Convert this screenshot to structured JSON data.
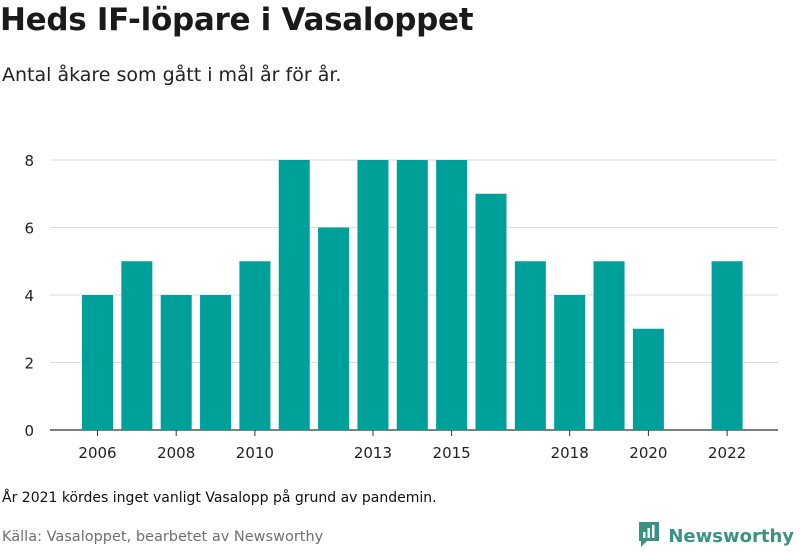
{
  "header": {
    "title": "Heds IF-löpare i Vasaloppet",
    "subtitle": "Antal åkare som gått i mål år för år."
  },
  "footer": {
    "note": "År 2021 kördes inget vanligt Vasalopp på grund av pandemin.",
    "source": "Källa: Vasaloppet, bearbetet av Newsworthy",
    "brand": "Newsworthy",
    "brand_color": "#3a9184"
  },
  "chart_data": {
    "type": "bar",
    "title": "Heds IF-löpare i Vasaloppet",
    "subtitle": "Antal åkare som gått i mål år för år.",
    "xlabel": "",
    "ylabel": "",
    "categories": [
      "2006",
      "2007",
      "2008",
      "2009",
      "2010",
      "2011",
      "2012",
      "2013",
      "2014",
      "2015",
      "2016",
      "2017",
      "2018",
      "2019",
      "2020",
      "2021",
      "2022"
    ],
    "values": [
      4,
      5,
      4,
      4,
      5,
      8,
      6,
      8,
      8,
      8,
      7,
      5,
      4,
      5,
      3,
      null,
      5
    ],
    "x_tick_labels": [
      "2006",
      "2008",
      "2010",
      "2013",
      "2015",
      "2018",
      "2020",
      "2022"
    ],
    "y_ticks": [
      0,
      2,
      4,
      6,
      8
    ],
    "ylim": [
      0,
      8
    ],
    "grid": "horizontal",
    "bar_color": "#00a09a",
    "grid_color": "#dddddd"
  }
}
